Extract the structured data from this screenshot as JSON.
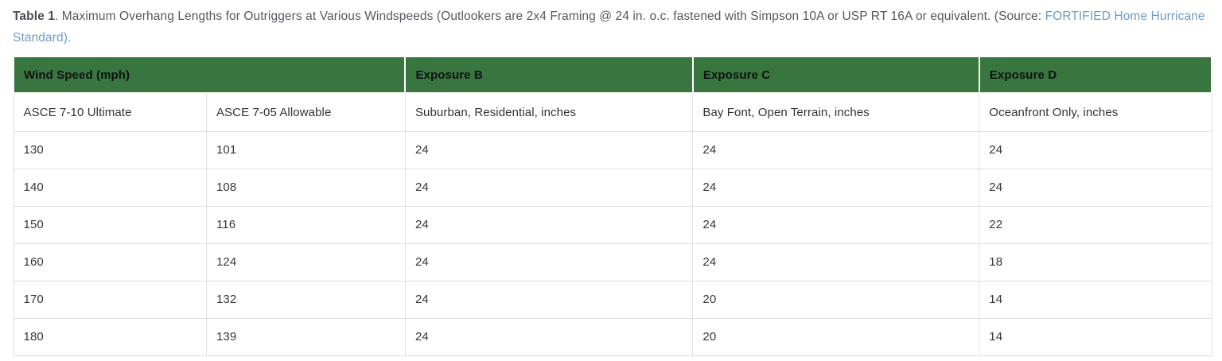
{
  "caption": {
    "label": "Table 1",
    "text_before_link": ". Maximum Overhang Lengths for Outriggers at Various Windspeeds (Outlookers are 2x4 Framing @ 24 in. o.c. fastened with Simpson 10A or USP RT 16A or equivalent. (Source: ",
    "link_text": "FORTIFIED Home Hurricane Standard",
    "text_after_link": ")."
  },
  "table": {
    "header_groups": [
      {
        "label": "Wind Speed (mph)",
        "colspan": 2
      },
      {
        "label": "Exposure B",
        "colspan": 1
      },
      {
        "label": "Exposure C",
        "colspan": 1
      },
      {
        "label": "Exposure D",
        "colspan": 1
      }
    ],
    "subheaders": [
      "ASCE 7-10 Ultimate",
      "ASCE 7-05 Allowable",
      "Suburban, Residential, inches",
      "Bay Font, Open Terrain, inches",
      "Oceanfront Only, inches"
    ],
    "rows": [
      [
        "130",
        "101",
        "24",
        "24",
        "24"
      ],
      [
        "140",
        "108",
        "24",
        "24",
        "24"
      ],
      [
        "150",
        "116",
        "24",
        "24",
        "22"
      ],
      [
        "160",
        "124",
        "24",
        "24",
        "18"
      ],
      [
        "170",
        "132",
        "24",
        "20",
        "14"
      ],
      [
        "180",
        "139",
        "24",
        "20",
        "14"
      ]
    ]
  },
  "colors": {
    "header_green": "#38753f",
    "header_text": "#101214",
    "body_text": "#33373c",
    "caption_text": "#54595f",
    "link_blue": "#6d9cc6",
    "border": "#e0e0e0"
  }
}
